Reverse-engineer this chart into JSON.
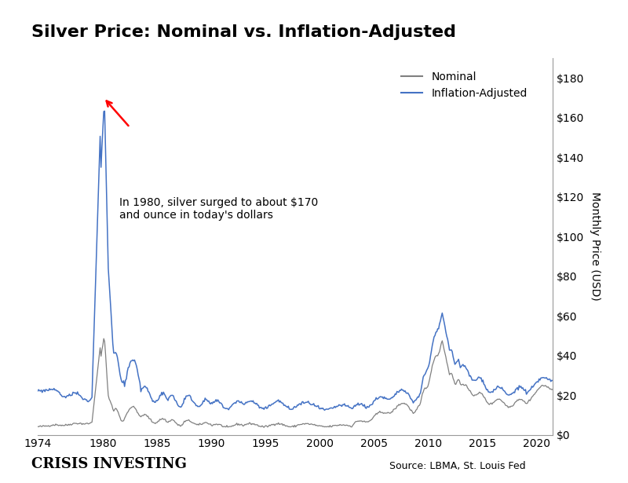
{
  "title": "Silver Price: Nominal vs. Inflation-Adjusted",
  "ylabel": "Monthly Price (USD)",
  "xlabel_ticks": [
    1974,
    1980,
    1985,
    1990,
    1995,
    2000,
    2005,
    2010,
    2015,
    2020
  ],
  "ytick_labels": [
    "$0",
    "$20",
    "$40",
    "$60",
    "$80",
    "$100",
    "$120",
    "$140",
    "$160",
    "$180"
  ],
  "ytick_values": [
    0,
    20,
    40,
    60,
    80,
    100,
    120,
    140,
    160,
    180
  ],
  "ylim": [
    0,
    190
  ],
  "xlim": [
    1974,
    2021.5
  ],
  "nominal_color": "#808080",
  "inflation_color": "#4472C4",
  "annotation_text": "In 1980, silver surged to about $170\nand ounce in today's dollars",
  "legend_nominal": "Nominal",
  "legend_inflation": "Inflation-Adjusted",
  "source_text": "Source: LBMA, St. Louis Fed",
  "background_color": "#ffffff"
}
